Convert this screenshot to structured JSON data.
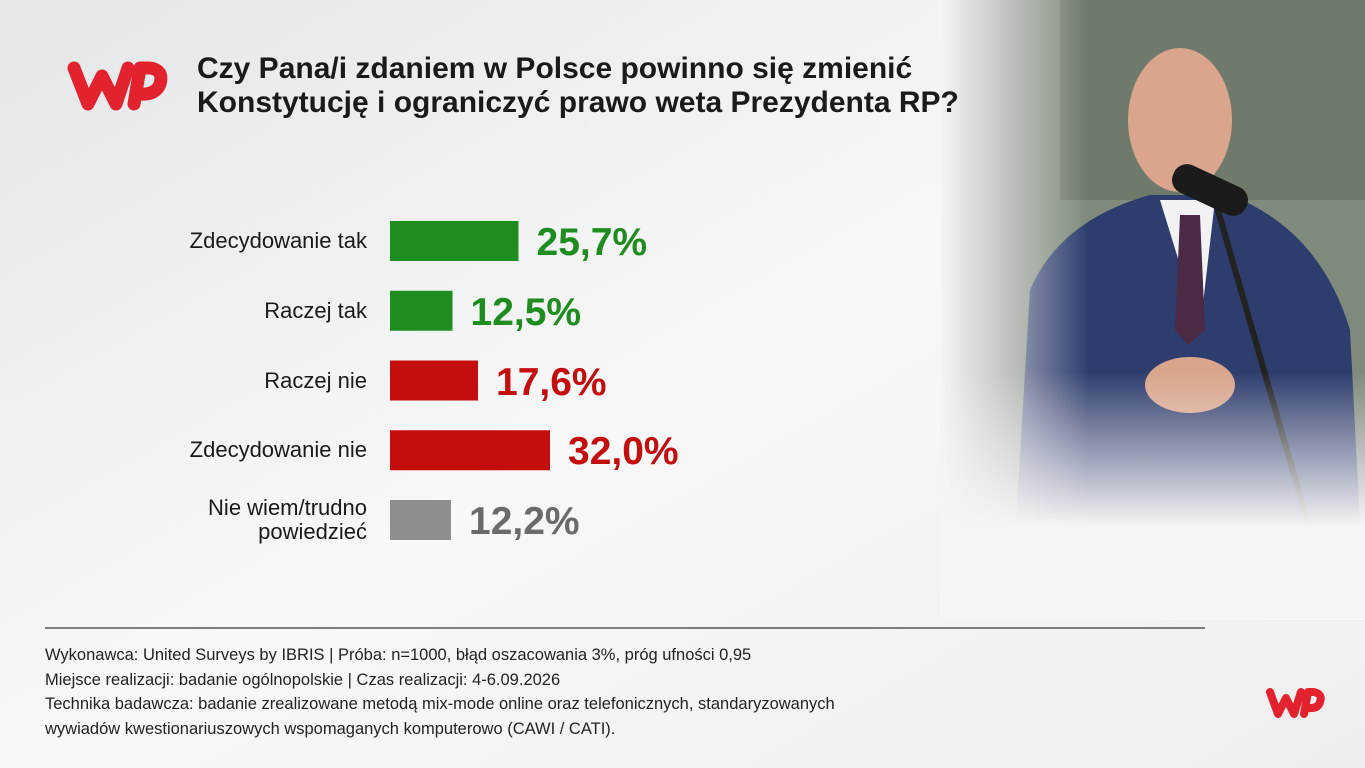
{
  "chart_data": {
    "type": "bar",
    "title": "Czy Pana/i zdaniem w Polsce powinno się zmienić\nKonstytucję i ograniczyć prawo weta Prezydenta RP?",
    "categories": [
      "Zdecydowanie tak",
      "Raczej tak",
      "Raczej nie",
      "Zdecydowanie nie",
      "Nie wiem/trudno\npowiedzieć"
    ],
    "values": [
      25.7,
      12.5,
      17.6,
      32.0,
      12.2
    ],
    "value_labels": [
      "25,7%",
      "12,5%",
      "17,6%",
      "32,0%",
      "12,2%"
    ],
    "colors": [
      "#1e8c1e",
      "#1e8c1e",
      "#c40d0d",
      "#c40d0d",
      "#8e8e8e"
    ],
    "label_colors": [
      "#1e8c1e",
      "#1e8c1e",
      "#c40d0d",
      "#c40d0d",
      "#6a6a6a"
    ],
    "footnote": [
      "Wykonawca: United Surveys by IBRIS | Próba: n=1000, błąd oszacowania 3%, próg ufności 0,95",
      "Miejsce realizacji: badanie ogólnopolskie | Czas realizacji: 4-6.09.2026",
      "Technika badawcza: badanie zrealizowane metodą mix-mode online oraz telefonicznych, standaryzowanych",
      "wywiadów kwestionariuszowych wspomaganych komputerowo (CAWI / CATI)."
    ]
  }
}
